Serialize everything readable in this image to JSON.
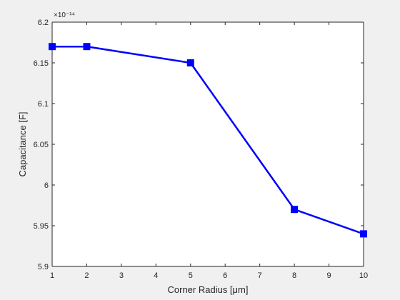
{
  "chart_data": {
    "type": "line",
    "title": "",
    "xlabel": "Corner Radius [μm]",
    "ylabel": "Capacitance [F]",
    "y_multiplier_label": "×10⁻¹⁴",
    "xlim": [
      1,
      10
    ],
    "ylim": [
      5.9,
      6.2
    ],
    "xticks": [
      "1",
      "2",
      "3",
      "4",
      "5",
      "6",
      "7",
      "8",
      "9",
      "10"
    ],
    "yticks": [
      "5.9",
      "5.95",
      "6",
      "6.05",
      "6.1",
      "6.15",
      "6.2"
    ],
    "grid": false,
    "legend": "none",
    "series": [
      {
        "x": [
          1,
          2,
          5,
          8,
          10
        ],
        "y": [
          6.17,
          6.17,
          6.15,
          5.97,
          5.94
        ],
        "color": "#0000ff",
        "marker": "square"
      }
    ]
  }
}
